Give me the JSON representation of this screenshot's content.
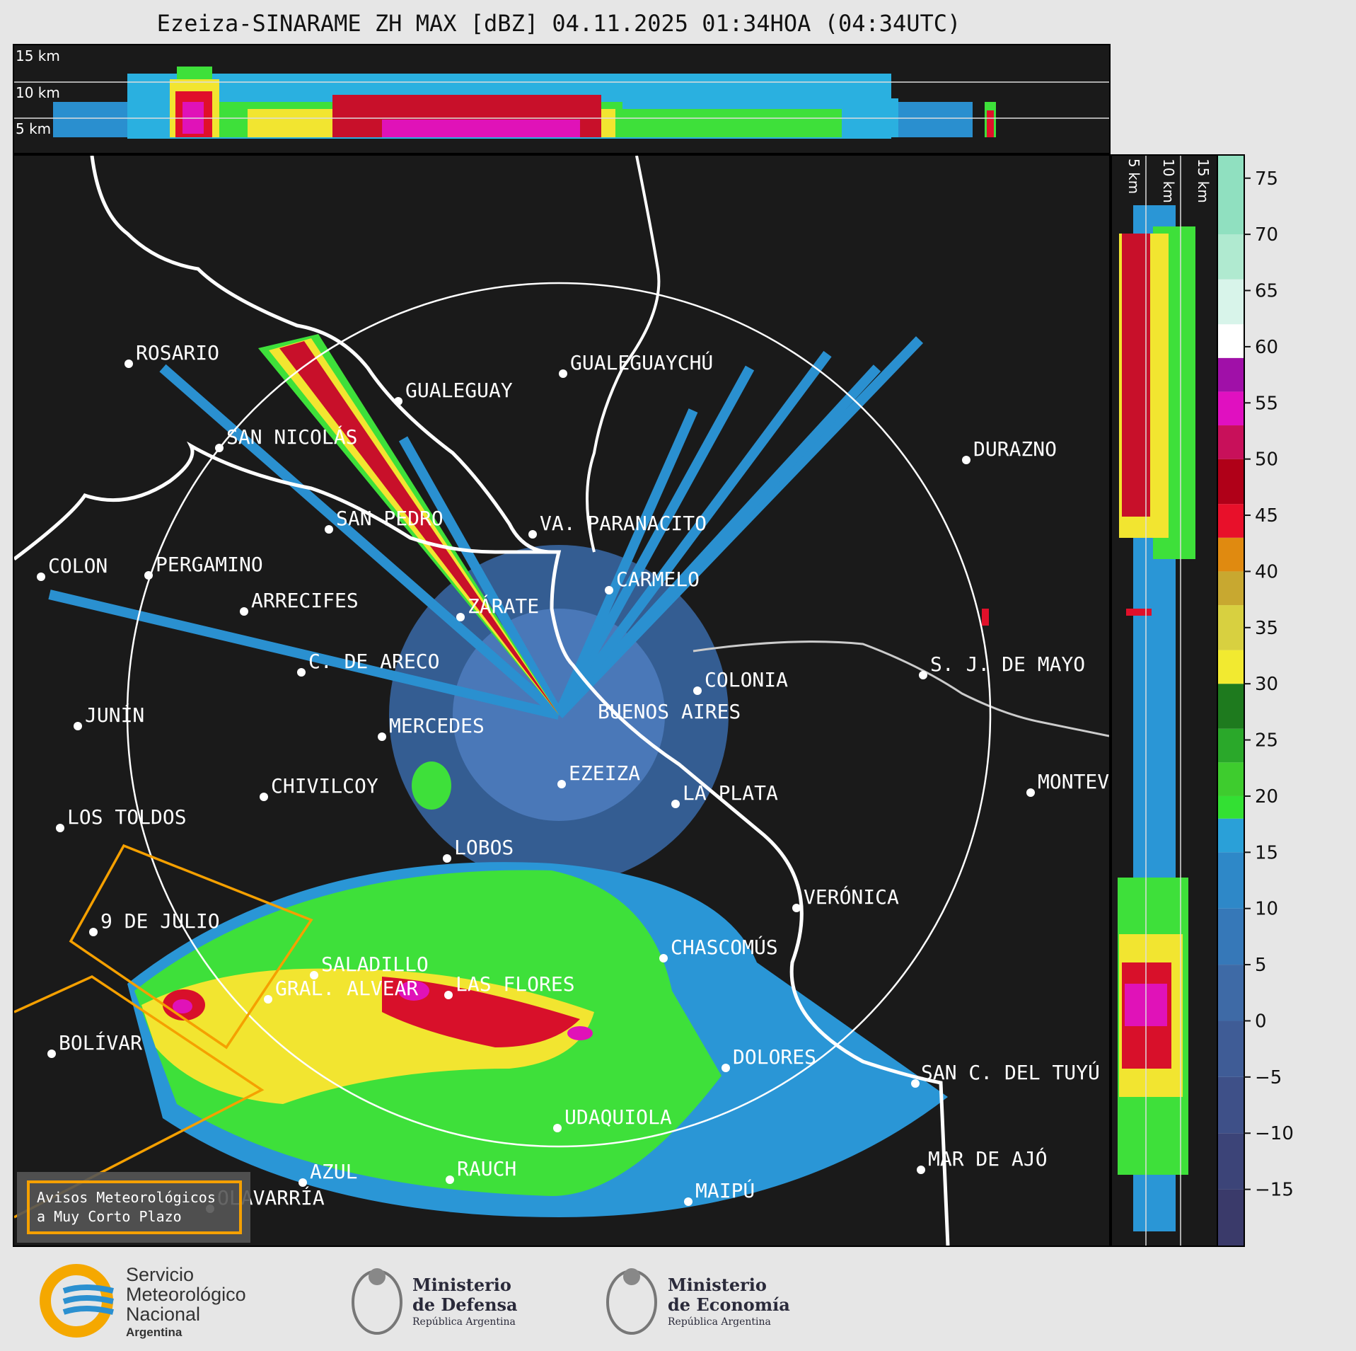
{
  "header": {
    "title": "Ezeiza-SINARAME ZH MAX [dBZ] 04.11.2025 01:34HOA (04:34UTC)"
  },
  "top_panel": {
    "height_labels": [
      "15 km",
      "10 km",
      "5 km"
    ]
  },
  "side_panel": {
    "height_labels": [
      "5 km",
      "10 km",
      "15 km"
    ]
  },
  "colorbar": {
    "unit": "dBZ",
    "ticks": [
      "75",
      "70",
      "65",
      "60",
      "55",
      "50",
      "45",
      "40",
      "35",
      "30",
      "25",
      "20",
      "15",
      "10",
      "5",
      "0",
      "−5",
      "−10",
      "−15"
    ],
    "range": [
      -20,
      77
    ]
  },
  "cities": [
    {
      "name": "ROSARIO"
    },
    {
      "name": "GUALEGUAYCHÚ"
    },
    {
      "name": "GUALEGUAY"
    },
    {
      "name": "SAN NICOLÁS"
    },
    {
      "name": "DURAZNO"
    },
    {
      "name": "SAN PEDRO"
    },
    {
      "name": "VA. PARANACITO"
    },
    {
      "name": "COLON"
    },
    {
      "name": "PERGAMINO"
    },
    {
      "name": "CARMELO"
    },
    {
      "name": "ARRECIFES"
    },
    {
      "name": "ZÁRATE"
    },
    {
      "name": "C. DE ARECO"
    },
    {
      "name": "S. J. DE MAYO"
    },
    {
      "name": "COLONIA"
    },
    {
      "name": "JUNÍN"
    },
    {
      "name": "BUENOS AIRES"
    },
    {
      "name": "MERCEDES"
    },
    {
      "name": "EZEIZA"
    },
    {
      "name": "MONTEVIDEO"
    },
    {
      "name": "CHIVILCOY"
    },
    {
      "name": "LA PLATA"
    },
    {
      "name": "LOS TOLDOS"
    },
    {
      "name": "LOBOS"
    },
    {
      "name": "VERÓNICA"
    },
    {
      "name": "9 DE JULIO"
    },
    {
      "name": "CHASCOMÚS"
    },
    {
      "name": "SALADILLO"
    },
    {
      "name": "GRAL. ALVEAR"
    },
    {
      "name": "LAS FLORES"
    },
    {
      "name": "BOLÍVAR"
    },
    {
      "name": "DOLORES"
    },
    {
      "name": "SAN C. DEL TUYÚ"
    },
    {
      "name": "UDAQUIOLA"
    },
    {
      "name": "MAR DE AJÓ"
    },
    {
      "name": "RAUCH"
    },
    {
      "name": "AZUL"
    },
    {
      "name": "OLAVARRÍA"
    },
    {
      "name": "MAIPÚ"
    }
  ],
  "legend": {
    "line1": "Avisos Meteorológicos",
    "line2": "a Muy Corto Plazo",
    "color": "#f5a000"
  },
  "footer": {
    "smn": {
      "line1": "Servicio",
      "line2": "Meteorológico",
      "line3": "Nacional",
      "line4": "Argentina"
    },
    "defensa": {
      "line1": "Ministerio",
      "line2": "de Defensa",
      "line3": "República Argentina"
    },
    "economia": {
      "line1": "Ministerio",
      "line2": "de Economía",
      "line3": "República Argentina"
    }
  }
}
